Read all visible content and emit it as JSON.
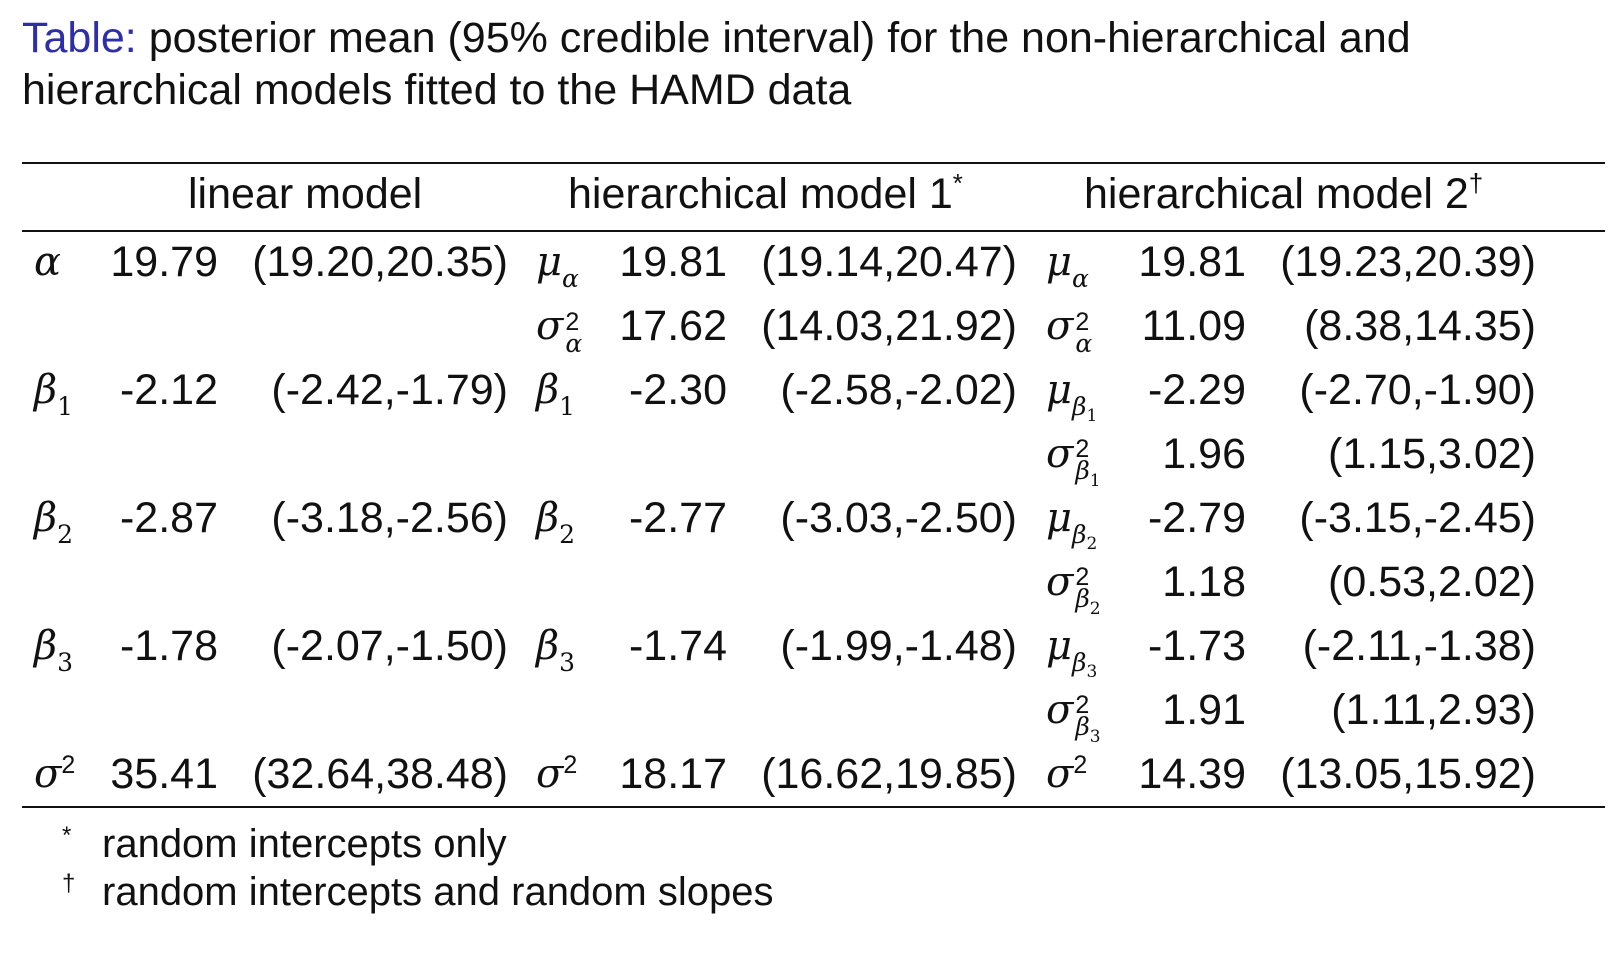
{
  "caption": {
    "label": "Table:",
    "text": "posterior mean (95% credible interval) for the non-hierarchical and hierarchical models fitted to the HAMD data"
  },
  "headers": {
    "linear": "linear model",
    "hier1": "hierarchical model 1",
    "hier1_mark": "*",
    "hier2": "hierarchical model 2",
    "hier2_mark": "†"
  },
  "rows": [
    {
      "lin_mean": "19.79",
      "lin_ci": "(19.20,20.35)",
      "h1_mean": "19.81",
      "h1_ci": "(19.14,20.47)",
      "h2_mean": "19.81",
      "h2_ci": "(19.23,20.39)"
    },
    {
      "lin_mean": "",
      "lin_ci": "",
      "h1_mean": "17.62",
      "h1_ci": "(14.03,21.92)",
      "h2_mean": "11.09",
      "h2_ci": "(8.38,14.35)"
    },
    {
      "lin_mean": "-2.12",
      "lin_ci": "(-2.42,-1.79)",
      "h1_mean": "-2.30",
      "h1_ci": "(-2.58,-2.02)",
      "h2_mean": "-2.29",
      "h2_ci": "(-2.70,-1.90)"
    },
    {
      "lin_mean": "",
      "lin_ci": "",
      "h1_mean": "",
      "h1_ci": "",
      "h2_mean": "1.96",
      "h2_ci": "(1.15,3.02)"
    },
    {
      "lin_mean": "-2.87",
      "lin_ci": "(-3.18,-2.56)",
      "h1_mean": "-2.77",
      "h1_ci": "(-3.03,-2.50)",
      "h2_mean": "-2.79",
      "h2_ci": "(-3.15,-2.45)"
    },
    {
      "lin_mean": "",
      "lin_ci": "",
      "h1_mean": "",
      "h1_ci": "",
      "h2_mean": "1.18",
      "h2_ci": "(0.53,2.02)"
    },
    {
      "lin_mean": "-1.78",
      "lin_ci": "(-2.07,-1.50)",
      "h1_mean": "-1.74",
      "h1_ci": "(-1.99,-1.48)",
      "h2_mean": "-1.73",
      "h2_ci": "(-2.11,-1.38)"
    },
    {
      "lin_mean": "",
      "lin_ci": "",
      "h1_mean": "",
      "h1_ci": "",
      "h2_mean": "1.91",
      "h2_ci": "(1.11,2.93)"
    },
    {
      "lin_mean": "35.41",
      "lin_ci": "(32.64,38.48)",
      "h1_mean": "18.17",
      "h1_ci": "(16.62,19.85)",
      "h2_mean": "14.39",
      "h2_ci": "(13.05,15.92)"
    }
  ],
  "footnotes": [
    {
      "mark": "*",
      "text": "random intercepts only"
    },
    {
      "mark": "†",
      "text": "random intercepts and random slopes"
    }
  ]
}
